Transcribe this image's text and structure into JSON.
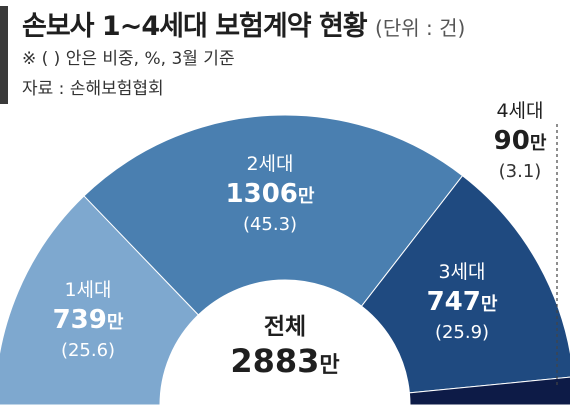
{
  "header": {
    "title": "손보사 1~4세대 보험계약 현황",
    "unit": "(단위 : 건)",
    "note": "※ (  ) 안은 비중, %, 3월 기준",
    "source": "자료 : 손해보험협회"
  },
  "chart_data": {
    "type": "pie",
    "variant": "semicircle-donut",
    "center_label": "전체",
    "center_value": "2883",
    "center_suffix": "만",
    "slices": [
      {
        "name": "1세대",
        "value": "739",
        "suffix": "만",
        "share": 25.6,
        "share_label": "(25.6)",
        "color": "#7ea8cf"
      },
      {
        "name": "2세대",
        "value": "1306",
        "suffix": "만",
        "share": 45.3,
        "share_label": "(45.3)",
        "color": "#4a7fb0"
      },
      {
        "name": "3세대",
        "value": "747",
        "suffix": "만",
        "share": 25.9,
        "share_label": "(25.9)",
        "color": "#1f4a80"
      },
      {
        "name": "4세대",
        "value": "90",
        "suffix": "만",
        "share": 3.1,
        "share_label": "(3.1)",
        "color": "#0d1b47"
      }
    ]
  }
}
